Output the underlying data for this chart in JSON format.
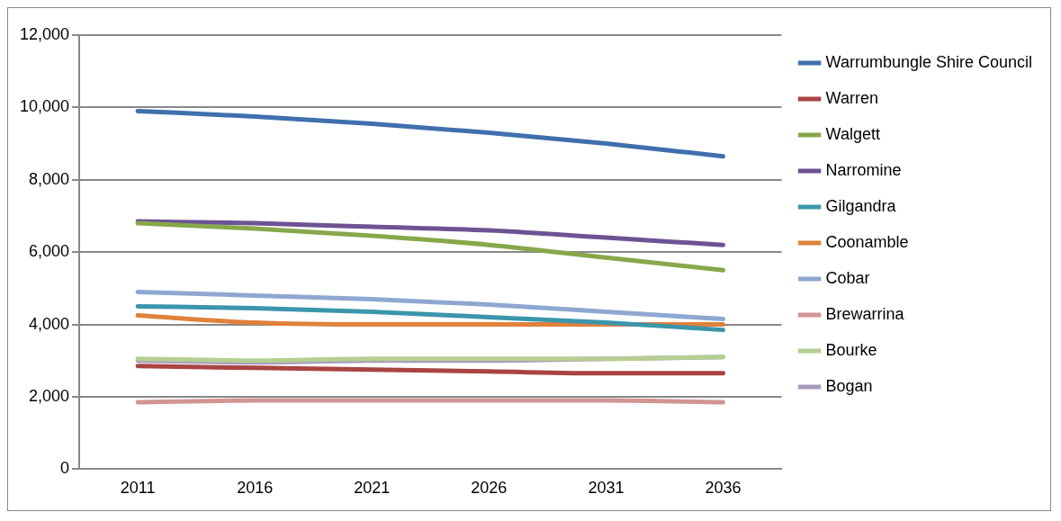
{
  "chart_data": {
    "type": "line",
    "categories": [
      "2011",
      "2016",
      "2021",
      "2026",
      "2031",
      "2036"
    ],
    "ylim": [
      0,
      12000
    ],
    "yticks": [
      0,
      {
        "value": 2000,
        "label": "2,000"
      },
      {
        "value": 4000,
        "label": "4,000"
      },
      {
        "value": 6000,
        "label": "6,000"
      },
      {
        "value": 8000,
        "label": "8,000"
      },
      {
        "value": 10000,
        "label": "10,000"
      },
      {
        "value": 12000,
        "label": "12,000"
      }
    ],
    "grid": "y",
    "legend": "right",
    "marker": "none",
    "line_style": "solid",
    "series": [
      {
        "name": "Warrumbungle Shire Council",
        "color": "#3f6fad",
        "values": [
          9900,
          9750,
          9550,
          9300,
          9000,
          8650
        ]
      },
      {
        "name": "Warren",
        "color": "#a94442",
        "values": [
          2850,
          2800,
          2750,
          2700,
          2650,
          2650
        ]
      },
      {
        "name": "Walgett",
        "color": "#86a84a",
        "values": [
          6800,
          6650,
          6450,
          6200,
          5850,
          5500
        ]
      },
      {
        "name": "Narromine",
        "color": "#6e5294",
        "values": [
          6850,
          6800,
          6700,
          6600,
          6400,
          6200
        ]
      },
      {
        "name": "Gilgandra",
        "color": "#3b96ac",
        "values": [
          4500,
          4450,
          4350,
          4200,
          4050,
          3850
        ]
      },
      {
        "name": "Coonamble",
        "color": "#e0823a",
        "values": [
          4250,
          4050,
          4000,
          4000,
          4000,
          4000
        ]
      },
      {
        "name": "Cobar",
        "color": "#8ea7d2",
        "values": [
          4900,
          4800,
          4700,
          4550,
          4350,
          4150
        ]
      },
      {
        "name": "Brewarrina",
        "color": "#d29494",
        "values": [
          1850,
          1900,
          1900,
          1900,
          1900,
          1850
        ]
      },
      {
        "name": "Bourke",
        "color": "#b4cf91",
        "values": [
          3050,
          3000,
          3050,
          3050,
          3050,
          3100
        ]
      },
      {
        "name": "Bogan",
        "color": "#a99bc0",
        "values": [
          3000,
          2950,
          3000,
          3000,
          3050,
          3100
        ]
      }
    ]
  }
}
